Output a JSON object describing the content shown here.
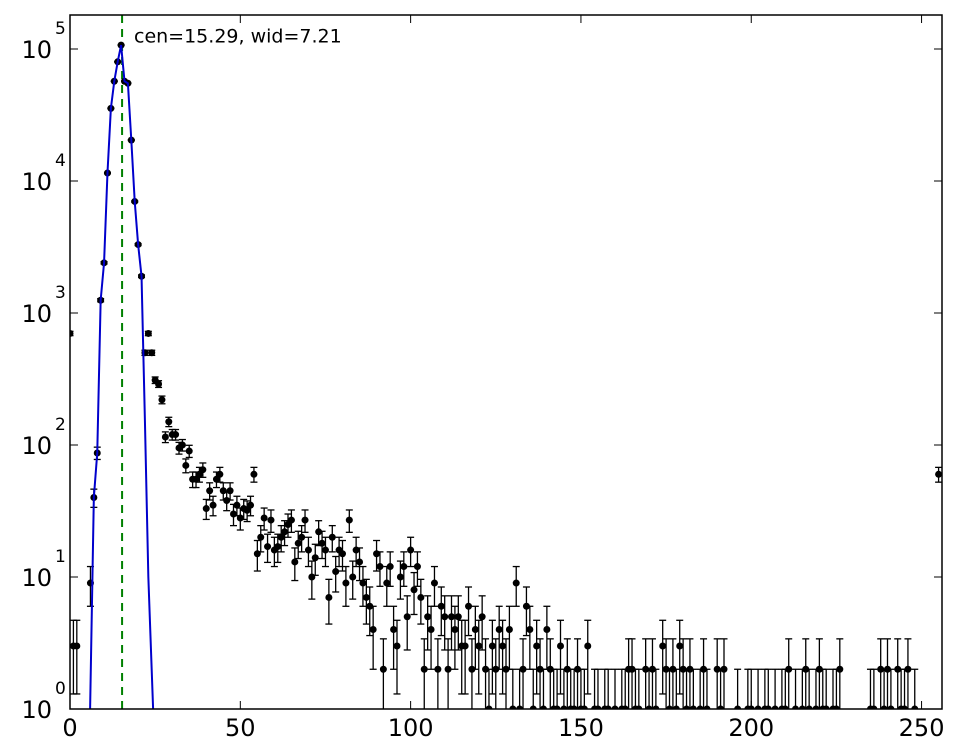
{
  "chart_data": {
    "type": "scatter",
    "annotation": "cen=15.29, wid=7.21",
    "annotation_color": "#008000",
    "vline": {
      "x": 15.29,
      "color": "#008000"
    },
    "xlim": [
      0,
      256
    ],
    "ylim": [
      1,
      181000
    ],
    "log_y": true,
    "xticks": [
      0,
      50,
      100,
      150,
      200,
      250
    ],
    "yticks": [
      {
        "value": 1,
        "label": "10",
        "exponent": "0"
      },
      {
        "value": 10,
        "label": "10",
        "exponent": "1"
      },
      {
        "value": 100,
        "label": "10",
        "exponent": "2"
      },
      {
        "value": 1000,
        "label": "10",
        "exponent": "3"
      },
      {
        "value": 10000,
        "label": "10",
        "exponent": "4"
      },
      {
        "value": 100000,
        "label": "10",
        "exponent": "5"
      }
    ],
    "series": [
      {
        "type": "errorbar",
        "color": "#000000",
        "x": [
          0,
          1,
          2,
          6,
          7,
          8,
          9,
          10,
          11,
          12,
          13,
          14,
          15,
          16,
          17,
          18,
          19,
          20,
          21,
          22,
          23,
          24,
          25,
          26,
          27,
          28,
          29,
          30,
          31,
          32,
          33,
          34,
          35,
          36,
          37,
          38,
          39,
          40,
          41,
          42,
          43,
          44,
          45,
          46,
          47,
          48,
          49,
          50,
          51,
          52,
          53,
          54,
          55,
          56,
          57,
          58,
          59,
          60,
          61,
          62,
          63,
          64,
          65,
          66,
          67,
          68,
          69,
          70,
          71,
          72,
          73,
          74,
          75,
          76,
          77,
          78,
          79,
          80,
          81,
          82,
          83,
          84,
          85,
          86,
          87,
          88,
          89,
          90,
          91,
          92,
          93,
          94,
          95,
          96,
          97,
          98,
          99,
          100,
          101,
          102,
          103,
          104,
          105,
          106,
          107,
          108,
          109,
          110,
          111,
          112,
          113,
          114,
          115,
          116,
          117,
          118,
          119,
          120,
          121,
          122,
          123,
          124,
          125,
          126,
          127,
          128,
          129,
          130,
          131,
          132,
          133,
          134,
          135,
          136,
          137,
          138,
          139,
          140,
          141,
          142,
          143,
          144,
          145,
          146,
          147,
          148,
          149,
          150,
          151,
          152,
          154,
          155,
          157,
          158,
          160,
          162,
          163,
          164,
          165,
          166,
          167,
          169,
          170,
          171,
          172,
          174,
          175,
          176,
          177,
          178,
          179,
          180,
          181,
          182,
          183,
          185,
          186,
          187,
          190,
          191,
          192,
          196,
          199,
          200,
          202,
          204,
          205,
          207,
          209,
          210,
          211,
          213,
          215,
          216,
          217,
          219,
          220,
          221,
          222,
          224,
          225,
          226,
          235,
          236,
          238,
          239,
          240,
          241,
          243,
          244,
          245,
          246,
          248,
          255
        ],
        "values": [
          700,
          3,
          3,
          9,
          40,
          87,
          1250,
          2400,
          11500,
          35500,
          57000,
          80000,
          107000,
          57000,
          55000,
          20400,
          7000,
          3300,
          1900,
          500,
          700,
          500,
          310,
          290,
          220,
          115,
          150,
          120,
          120,
          95,
          100,
          70,
          90,
          55,
          55,
          60,
          65,
          33,
          45,
          35,
          55,
          60,
          45,
          38,
          45,
          30,
          35,
          28,
          33,
          32,
          35,
          60,
          15,
          20,
          28,
          17,
          27,
          16,
          17,
          20,
          22,
          25,
          27,
          13,
          18,
          20,
          27,
          16,
          10,
          14,
          22,
          18,
          16,
          7,
          20,
          11,
          16,
          15,
          9,
          27,
          10,
          16,
          13,
          9,
          7,
          6,
          4,
          15,
          12,
          2,
          9,
          12,
          4,
          3,
          10,
          12,
          5,
          16,
          8,
          12,
          7,
          2,
          5,
          4,
          9,
          2,
          6,
          5,
          2,
          5,
          4,
          5,
          3,
          3,
          6,
          2,
          4,
          3,
          5,
          2,
          1,
          3,
          2,
          4,
          3,
          2,
          4,
          1,
          9,
          1,
          2,
          6,
          4,
          1,
          3,
          2,
          1,
          4,
          2,
          1,
          1,
          3,
          1,
          2,
          1,
          1,
          2,
          1,
          1,
          3,
          1,
          1,
          1,
          1,
          1,
          1,
          1,
          2,
          2,
          1,
          1,
          2,
          1,
          2,
          1,
          3,
          2,
          1,
          2,
          1,
          3,
          2,
          1,
          2,
          1,
          1,
          2,
          1,
          2,
          1,
          2,
          1,
          1,
          1,
          1,
          1,
          1,
          1,
          1,
          1,
          2,
          1,
          1,
          2,
          1,
          1,
          2,
          1,
          1,
          1,
          1,
          2,
          1,
          1,
          2,
          1,
          2,
          1,
          2,
          1,
          1,
          2,
          1,
          60
        ],
        "errors": [
          26.5,
          1.7,
          1.7,
          3,
          6.3,
          9.3,
          35.4,
          49,
          107,
          188,
          239,
          283,
          327,
          239,
          235,
          143,
          84,
          57,
          44,
          22.4,
          26.5,
          22.4,
          17.6,
          17,
          14.8,
          10.7,
          12.2,
          11,
          11,
          9.7,
          10,
          8.4,
          9.5,
          7.4,
          7.4,
          7.7,
          8.1,
          5.7,
          6.7,
          5.9,
          7.4,
          7.7,
          6.7,
          6.2,
          6.7,
          5.5,
          5.9,
          5.3,
          5.7,
          5.7,
          5.9,
          7.7,
          3.9,
          4.5,
          5.3,
          4.1,
          5.2,
          4,
          4.1,
          4.5,
          4.7,
          5,
          5.2,
          3.6,
          4.2,
          4.5,
          5.2,
          4,
          3.2,
          3.7,
          4.7,
          4.2,
          4,
          2.6,
          4.5,
          3.3,
          4,
          3.9,
          3,
          5.2,
          3.2,
          4,
          3.6,
          3,
          2.6,
          2.4,
          2,
          3.9,
          3.5,
          1.4,
          3,
          3.5,
          2,
          1.7,
          3.2,
          3.5,
          2.2,
          4,
          2.8,
          3.5,
          2.6,
          1.4,
          2.2,
          2,
          3,
          1.4,
          2.4,
          2.2,
          1.4,
          2.2,
          2,
          2.2,
          1.7,
          1.7,
          2.4,
          1.4,
          2,
          1.7,
          2.2,
          1.4,
          1,
          1.7,
          1.4,
          2,
          1.7,
          1.4,
          2,
          1,
          3,
          1,
          1.4,
          2.4,
          2,
          1,
          1.7,
          1.4,
          1,
          2,
          1.4,
          1,
          1,
          1.7,
          1,
          1.4,
          1,
          1,
          1.4,
          1,
          1,
          1.7,
          1,
          1,
          1,
          1,
          1,
          1,
          1,
          1.4,
          1.4,
          1,
          1,
          1.4,
          1,
          1.4,
          1,
          1.7,
          1.4,
          1,
          1.4,
          1,
          1.7,
          1.4,
          1,
          1.4,
          1,
          1,
          1.4,
          1,
          1.4,
          1,
          1.4,
          1,
          1,
          1,
          1,
          1,
          1,
          1,
          1,
          1,
          1.4,
          1,
          1,
          1.4,
          1,
          1,
          1.4,
          1,
          1,
          1,
          1,
          1.4,
          1,
          1,
          1.4,
          1,
          1.4,
          1,
          1.4,
          1,
          1,
          1.4,
          1,
          7.7
        ]
      },
      {
        "type": "line",
        "color": "#0000cc",
        "x": [
          5.9,
          7,
          8,
          9,
          10,
          11,
          12,
          13,
          14,
          15,
          16,
          17,
          18,
          19,
          20,
          21,
          22,
          23,
          24.4
        ],
        "values": [
          1,
          40,
          87,
          1250,
          2400,
          11500,
          35500,
          57000,
          80000,
          107000,
          57000,
          55000,
          20400,
          7000,
          3300,
          1900,
          150,
          10,
          1
        ]
      }
    ]
  }
}
